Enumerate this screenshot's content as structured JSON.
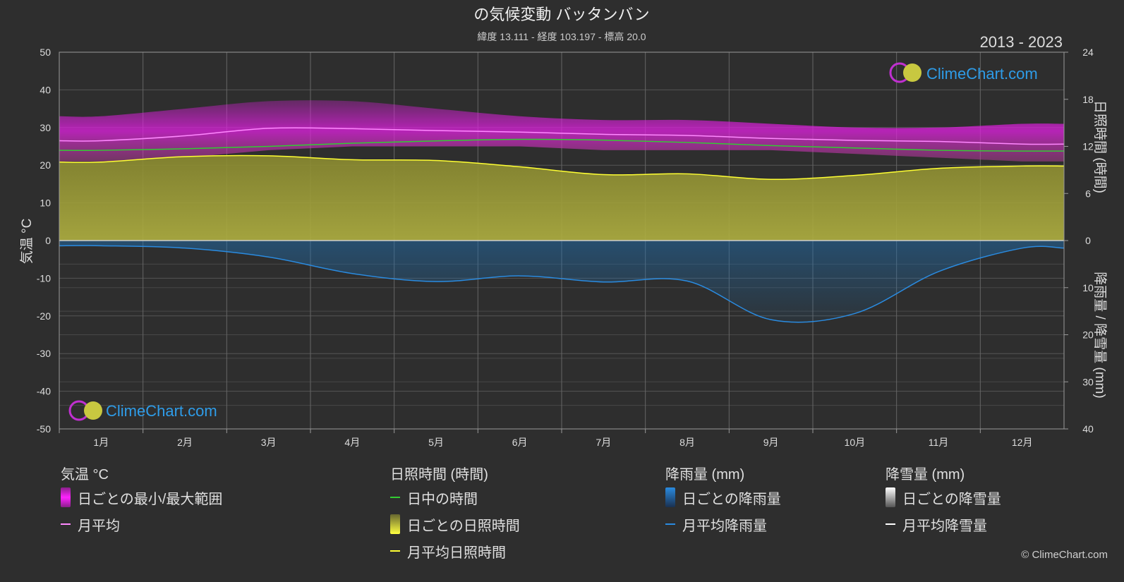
{
  "title": "の気候変動 バッタンバン",
  "subtitle": "緯度 13.111 - 経度 103.197 - 標高 20.0",
  "year_range": "2013 - 2023",
  "watermark": "ClimeChart.com",
  "copyright": "© ClimeChart.com",
  "colors": {
    "background": "#2e2e2e",
    "temp_range": "#e020e0",
    "temp_avg": "#ff88ff",
    "daylight": "#33cc33",
    "sunshine_bar": "#e4e440",
    "sunshine_avg": "#ffff33",
    "rain_bar": "#1c6fb5",
    "rain_avg": "#2a8be0",
    "snow_avg": "#ffffff",
    "brand": "#2e9ce8"
  },
  "chart_data": {
    "type": "line",
    "months": [
      "1月",
      "2月",
      "3月",
      "4月",
      "5月",
      "6月",
      "7月",
      "8月",
      "9月",
      "10月",
      "11月",
      "12月"
    ],
    "left_axis": {
      "label": "気温 °C",
      "ylim": [
        -50,
        50
      ],
      "ticks": [
        "50",
        "40",
        "30",
        "20",
        "10",
        "0",
        "-10",
        "-20",
        "-30",
        "-40",
        "-50"
      ]
    },
    "right_axis_top": {
      "label": "日照時間 (時間)",
      "ylim": [
        0,
        24
      ],
      "ticks": [
        "24",
        "18",
        "12",
        "6",
        "0"
      ]
    },
    "right_axis_bottom": {
      "label": "降雨量 / 降雪量 (mm)",
      "ylim": [
        0,
        40
      ],
      "ticks": [
        "0",
        "10",
        "20",
        "30",
        "40"
      ]
    },
    "series": [
      {
        "name": "日ごとの最小/最大範囲",
        "unit": "°C",
        "min": [
          21,
          22,
          24,
          25,
          25,
          25,
          24,
          24,
          24,
          23,
          22,
          21
        ],
        "max": [
          33,
          35,
          37,
          37,
          35,
          33,
          32,
          32,
          31,
          30,
          30,
          31
        ]
      },
      {
        "name": "月平均",
        "unit": "°C",
        "values": [
          26.5,
          27.8,
          29.8,
          29.7,
          29.2,
          28.8,
          28.2,
          27.9,
          27.1,
          26.6,
          26.3,
          25.6
        ]
      },
      {
        "name": "日中の時間",
        "unit": "時間",
        "values": [
          11.5,
          11.7,
          12.0,
          12.4,
          12.7,
          12.9,
          12.8,
          12.5,
          12.1,
          11.8,
          11.5,
          11.4
        ]
      },
      {
        "name": "日ごとの日照時間",
        "unit": "時間",
        "values": [
          10.0,
          10.7,
          10.8,
          10.3,
          10.2,
          9.4,
          8.4,
          8.5,
          7.8,
          8.3,
          9.2,
          9.5
        ]
      },
      {
        "name": "月平均日照時間",
        "unit": "時間",
        "values": [
          10.0,
          10.7,
          10.8,
          10.3,
          10.2,
          9.4,
          8.4,
          8.5,
          7.8,
          8.3,
          9.2,
          9.5
        ]
      },
      {
        "name": "日ごとの降雨量",
        "unit": "mm",
        "values": [
          1.1,
          1.6,
          3.5,
          7.0,
          8.7,
          7.5,
          8.8,
          8.6,
          16.8,
          15.5,
          6.6,
          1.6
        ]
      },
      {
        "name": "月平均降雨量",
        "unit": "mm",
        "values": [
          1.1,
          1.6,
          3.5,
          7.0,
          8.7,
          7.5,
          8.8,
          8.6,
          16.8,
          15.5,
          6.6,
          1.6
        ]
      },
      {
        "name": "月平均降雪量",
        "unit": "mm",
        "values": [
          0,
          0,
          0,
          0,
          0,
          0,
          0,
          0,
          0,
          0,
          0,
          0
        ]
      }
    ]
  },
  "legend": {
    "temperature": {
      "title": "気温 °C",
      "range": "日ごとの最小/最大範囲",
      "avg": "月平均"
    },
    "sunshine": {
      "title": "日照時間 (時間)",
      "daylight": "日中の時間",
      "daily": "日ごとの日照時間",
      "avg": "月平均日照時間"
    },
    "rain": {
      "title": "降雨量 (mm)",
      "daily": "日ごとの降雨量",
      "avg": "月平均降雨量"
    },
    "snow": {
      "title": "降雪量 (mm)",
      "daily": "日ごとの降雪量",
      "avg": "月平均降雪量"
    }
  }
}
